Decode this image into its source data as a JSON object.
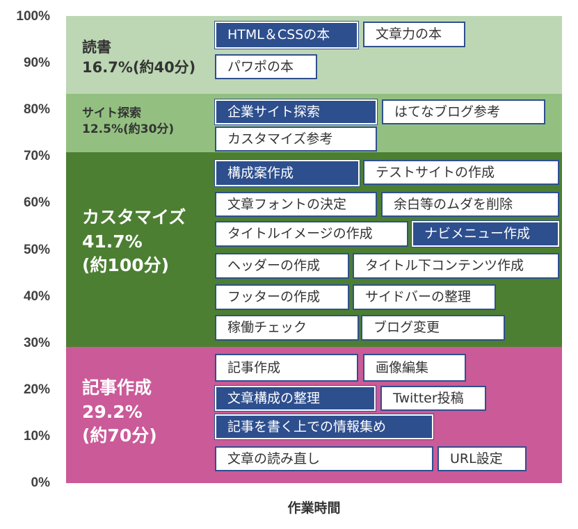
{
  "chart_data": {
    "type": "stacked-bar",
    "xlabel": "作業時間",
    "ylim": [
      0,
      100
    ],
    "yticks": [
      "0%",
      "10%",
      "20%",
      "30%",
      "40%",
      "50%",
      "60%",
      "70%",
      "80%",
      "90%",
      "100%"
    ],
    "colors": {
      "reading": "#bdd7b4",
      "site_research": "#93c081",
      "customize": "#4c7f32",
      "writing": "#cb5a98",
      "task_highlight": "#2e4f8e",
      "task_border": "#2f4f8f"
    },
    "segments": [
      {
        "id": "writing",
        "label": "記事作成\n29.2%\n(約70分)",
        "percent": 29.2,
        "color": "#cb5a98",
        "tasks": [
          {
            "text": "記事作成",
            "highlight": false
          },
          {
            "text": "画像編集",
            "highlight": false
          },
          {
            "text": "文章構成の整理",
            "highlight": true
          },
          {
            "text": "Twitter投稿",
            "highlight": false
          },
          {
            "text": "記事を書く上での情報集め",
            "highlight": true
          },
          {
            "text": "文章の読み直し",
            "highlight": false
          },
          {
            "text": "URL設定",
            "highlight": false
          }
        ]
      },
      {
        "id": "customize",
        "label": "カスタマイズ\n41.7%\n(約100分)",
        "percent": 41.7,
        "color": "#4c7f32",
        "tasks": [
          {
            "text": "構成案作成",
            "highlight": true
          },
          {
            "text": "テストサイトの作成",
            "highlight": false
          },
          {
            "text": "文章フォントの決定",
            "highlight": false
          },
          {
            "text": "余白等のムダを削除",
            "highlight": false
          },
          {
            "text": "タイトルイメージの作成",
            "highlight": false
          },
          {
            "text": "ナビメニュー作成",
            "highlight": true
          },
          {
            "text": "ヘッダーの作成",
            "highlight": false
          },
          {
            "text": "タイトル下コンテンツ作成",
            "highlight": false
          },
          {
            "text": "フッターの作成",
            "highlight": false
          },
          {
            "text": "サイドバーの整理",
            "highlight": false
          },
          {
            "text": "稼働チェック",
            "highlight": false
          },
          {
            "text": "ブログ変更",
            "highlight": false
          }
        ]
      },
      {
        "id": "site_research",
        "label": "サイト探索\n12.5%(約30分)",
        "percent": 12.5,
        "color": "#93c081",
        "tasks": [
          {
            "text": "企業サイト探索",
            "highlight": true
          },
          {
            "text": "はてなブログ参考",
            "highlight": false
          },
          {
            "text": "カスタマイズ参考",
            "highlight": false
          }
        ]
      },
      {
        "id": "reading",
        "label": "読書\n16.7%(約40分)",
        "percent": 16.7,
        "color": "#bdd7b4",
        "tasks": [
          {
            "text": "HTML＆CSSの本",
            "highlight": true
          },
          {
            "text": "文章力の本",
            "highlight": false
          },
          {
            "text": "パワポの本",
            "highlight": false
          }
        ]
      }
    ]
  }
}
